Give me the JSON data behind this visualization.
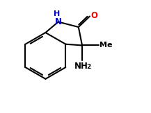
{
  "background_color": "#ffffff",
  "line_color": "#000000",
  "N_color": "#0000cd",
  "O_color": "#ff0000",
  "linewidth": 1.5,
  "figsize": [
    2.17,
    1.63
  ],
  "dpi": 100,
  "font_size": 8.5,
  "font_size_sub": 6.5,
  "xlim": [
    0,
    10
  ],
  "ylim": [
    0,
    7.5
  ]
}
